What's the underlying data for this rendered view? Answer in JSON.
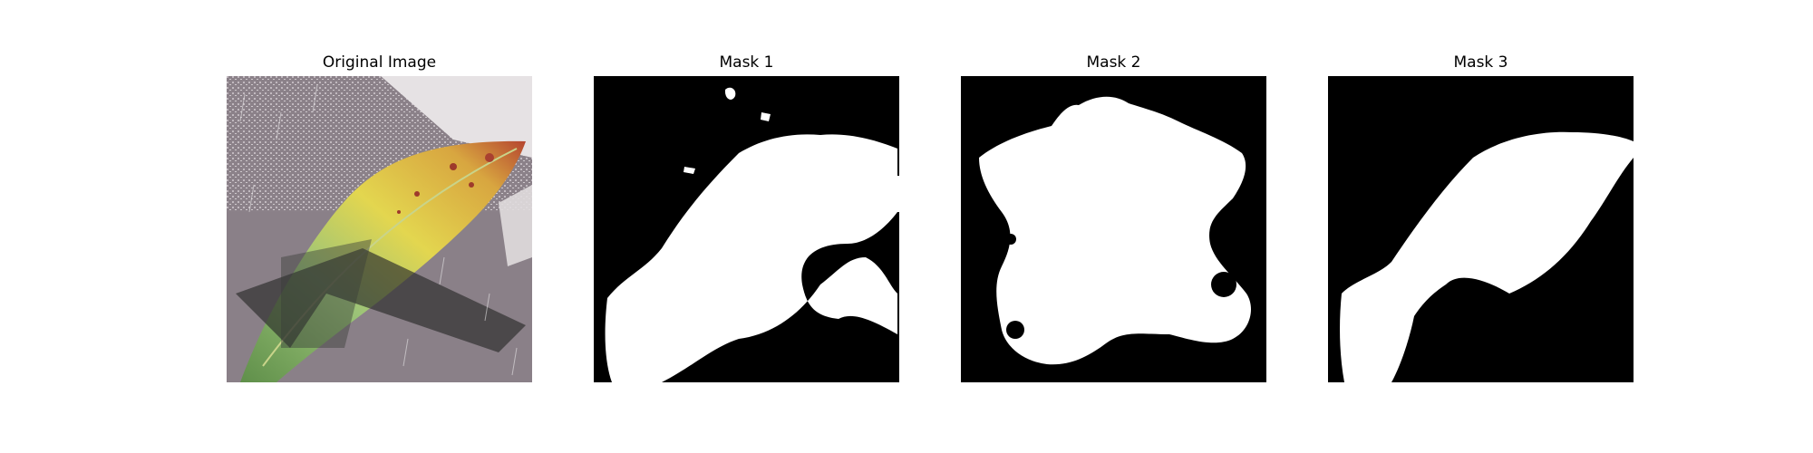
{
  "figure": {
    "panels": [
      {
        "title": "Original Image"
      },
      {
        "title": "Mask 1"
      },
      {
        "title": "Mask 2"
      },
      {
        "title": "Mask 3"
      }
    ]
  },
  "colors": {
    "background": "#ffffff",
    "mask_foreground": "#ffffff",
    "mask_background": "#000000",
    "leaf_green": "#8fb86a",
    "leaf_yellow": "#e0d24a",
    "leaf_red_edge": "#a83a2a",
    "backdrop_grey": "#8a8088"
  }
}
